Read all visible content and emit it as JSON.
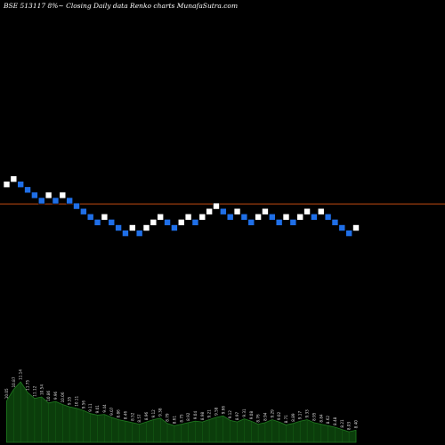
{
  "chart_data": {
    "type": "renko",
    "title": "BSE 513117 8%~  Closing Daily data  Renko  charts MunafaSutra.com",
    "reference_level": 4.4,
    "colors": {
      "background": "#000000",
      "up_brick": "#ffffff",
      "down_brick": "#1f6fe8",
      "brick_outline": "#000000",
      "reference_line": "#c24a12",
      "volume_fill": "#0b3d0b",
      "volume_line": "#1f7a1f",
      "label_text": "#dddddd"
    },
    "bricks": [
      {
        "dir": "up",
        "level": 8
      },
      {
        "dir": "up",
        "level": 9
      },
      {
        "dir": "down",
        "level": 8
      },
      {
        "dir": "down",
        "level": 7
      },
      {
        "dir": "down",
        "level": 6
      },
      {
        "dir": "down",
        "level": 5
      },
      {
        "dir": "up",
        "level": 6
      },
      {
        "dir": "down",
        "level": 5
      },
      {
        "dir": "up",
        "level": 6
      },
      {
        "dir": "down",
        "level": 5
      },
      {
        "dir": "down",
        "level": 4
      },
      {
        "dir": "down",
        "level": 3
      },
      {
        "dir": "down",
        "level": 2
      },
      {
        "dir": "down",
        "level": 1
      },
      {
        "dir": "up",
        "level": 2
      },
      {
        "dir": "down",
        "level": 1
      },
      {
        "dir": "down",
        "level": 0
      },
      {
        "dir": "down",
        "level": -1
      },
      {
        "dir": "up",
        "level": 0
      },
      {
        "dir": "down",
        "level": -1
      },
      {
        "dir": "up",
        "level": 0
      },
      {
        "dir": "up",
        "level": 1
      },
      {
        "dir": "up",
        "level": 2
      },
      {
        "dir": "down",
        "level": 1
      },
      {
        "dir": "down",
        "level": 0
      },
      {
        "dir": "up",
        "level": 1
      },
      {
        "dir": "up",
        "level": 2
      },
      {
        "dir": "down",
        "level": 1
      },
      {
        "dir": "up",
        "level": 2
      },
      {
        "dir": "up",
        "level": 3
      },
      {
        "dir": "up",
        "level": 4
      },
      {
        "dir": "down",
        "level": 3
      },
      {
        "dir": "down",
        "level": 2
      },
      {
        "dir": "up",
        "level": 3
      },
      {
        "dir": "down",
        "level": 2
      },
      {
        "dir": "down",
        "level": 1
      },
      {
        "dir": "up",
        "level": 2
      },
      {
        "dir": "up",
        "level": 3
      },
      {
        "dir": "down",
        "level": 2
      },
      {
        "dir": "down",
        "level": 1
      },
      {
        "dir": "up",
        "level": 2
      },
      {
        "dir": "down",
        "level": 1
      },
      {
        "dir": "up",
        "level": 2
      },
      {
        "dir": "up",
        "level": 3
      },
      {
        "dir": "down",
        "level": 2
      },
      {
        "dir": "up",
        "level": 3
      },
      {
        "dir": "down",
        "level": 2
      },
      {
        "dir": "down",
        "level": 1
      },
      {
        "dir": "down",
        "level": 0
      },
      {
        "dir": "down",
        "level": -1
      },
      {
        "dir": "up",
        "level": 0
      }
    ],
    "volume": [
      55,
      70,
      80,
      66,
      58,
      60,
      52,
      54,
      50,
      47,
      45,
      42,
      38,
      36,
      37,
      33,
      30,
      28,
      26,
      24,
      27,
      30,
      32,
      25,
      22,
      24,
      26,
      28,
      27,
      30,
      33,
      35,
      29,
      27,
      31,
      28,
      24,
      26,
      30,
      27,
      23,
      25,
      28,
      30,
      26,
      24,
      22,
      20,
      17,
      14,
      16
    ],
    "value_labels": [
      "10.05",
      "10.87",
      "11.14",
      "11.75",
      "11.12",
      "10.54",
      "10.86",
      "9.96",
      "10.06",
      "9.35",
      "10.11",
      "9.56",
      "9.11",
      "9.01",
      "9.44",
      "9.07",
      "8.86",
      "8.46",
      "8.52",
      "8.57",
      "8.96",
      "9.12",
      "9.38",
      "8.79",
      "8.61",
      "8.75",
      "8.92",
      "9.04",
      "8.98",
      "9.21",
      "9.58",
      "9.66",
      "9.12",
      "8.97",
      "9.31",
      "9.08",
      "8.76",
      "8.94",
      "9.29",
      "9.02",
      "8.71",
      "8.89",
      "9.17",
      "9.33",
      "8.95",
      "8.84",
      "8.62",
      "8.48",
      "8.21",
      "8.03",
      "8.40"
    ]
  }
}
